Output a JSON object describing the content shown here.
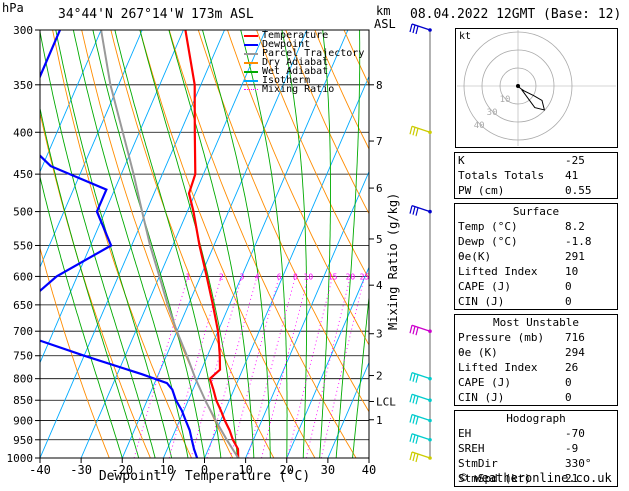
{
  "header": {
    "hpa_label": "hPa",
    "location": "34°44'N  267°14'W  173m  ASL",
    "km_label": "km",
    "asl_label": "ASL",
    "datetime": "08.04.2022  12GMT  (Base: 12)"
  },
  "chart_data": {
    "type": "line",
    "title": "",
    "xlabel": "Dewpoint / Temperature (°C)",
    "ylabel": "",
    "right_axis_label": "Mixing Ratio (g/kg)",
    "xlim": [
      -40,
      40
    ],
    "ylim_hpa": [
      1000,
      300
    ],
    "x_ticks": [
      "-40",
      "-30",
      "-20",
      "-10",
      "0",
      "10",
      "20",
      "30",
      "40"
    ],
    "pressure_ticks": [
      "300",
      "350",
      "400",
      "450",
      "500",
      "550",
      "600",
      "650",
      "700",
      "750",
      "800",
      "850",
      "900",
      "950",
      "1000"
    ],
    "km_ticks": [
      {
        "label": "8",
        "p": 350
      },
      {
        "label": "7",
        "p": 410
      },
      {
        "label": "6",
        "p": 468
      },
      {
        "label": "5",
        "p": 540
      },
      {
        "label": "4",
        "p": 615
      },
      {
        "label": "3",
        "p": 705
      },
      {
        "label": "2",
        "p": 793
      },
      {
        "label": "LCL",
        "p": 853
      },
      {
        "label": "1",
        "p": 898
      }
    ],
    "mixing_ratio_labels": [
      "1",
      "2",
      "3",
      "4",
      "6",
      "8",
      "10",
      "15",
      "20",
      "25"
    ],
    "legend": {
      "placement": "top-right",
      "entries": [
        {
          "name": "Temperature",
          "color": "#ff0000",
          "style": "solid"
        },
        {
          "name": "Dewpoint",
          "color": "#0000ff",
          "style": "solid"
        },
        {
          "name": "Parcel Trajectory",
          "color": "#999999",
          "style": "solid"
        },
        {
          "name": "Dry Adiabat",
          "color": "#ff8c00",
          "style": "solid"
        },
        {
          "name": "Wet Adiabat",
          "color": "#00aa00",
          "style": "solid"
        },
        {
          "name": "Isotherm",
          "color": "#00aaff",
          "style": "solid"
        },
        {
          "name": "Mixing Ratio",
          "color": "#ff00ff",
          "style": "dotted"
        }
      ]
    },
    "series": [
      {
        "name": "Temperature",
        "p": [
          1000,
          975,
          950,
          925,
          900,
          875,
          850,
          825,
          800,
          780,
          750,
          700,
          650,
          600,
          550,
          500,
          475,
          450,
          400,
          350,
          300
        ],
        "t": [
          8.2,
          7.2,
          5.0,
          3.2,
          1.0,
          -1.0,
          -3.2,
          -5.0,
          -7.0,
          -5.5,
          -7.0,
          -10.0,
          -14.0,
          -18.5,
          -23.5,
          -28.5,
          -31.5,
          -32.0,
          -36.5,
          -41.5,
          -49.5
        ]
      },
      {
        "name": "Dewpoint",
        "p": [
          1000,
          975,
          950,
          925,
          900,
          875,
          850,
          825,
          810,
          790,
          750,
          700,
          650,
          600,
          550,
          500,
          470,
          440,
          400,
          350,
          300
        ],
        "t": [
          -1.8,
          -3.5,
          -5.0,
          -6.5,
          -8.5,
          -10.5,
          -13.0,
          -15.0,
          -17.0,
          -24.0,
          -40.0,
          -60.0,
          -60.0,
          -55.0,
          -45.0,
          -52.0,
          -52.0,
          -68.0,
          -80.0,
          -80.0,
          -80.0
        ]
      },
      {
        "name": "Parcel Trajectory",
        "p": [
          1000,
          950,
          900,
          853,
          800,
          750,
          700,
          650,
          600,
          550,
          500,
          450,
          400,
          350,
          300
        ],
        "t": [
          8.2,
          3.5,
          -1.2,
          -5.6,
          -10.5,
          -15.0,
          -20.0,
          -25.0,
          -30.0,
          -35.5,
          -41.0,
          -47.0,
          -54.0,
          -62.0,
          -70.0
        ]
      }
    ],
    "wind_barbs": [
      {
        "p": 1000,
        "color": "#cccc00"
      },
      {
        "p": 950,
        "color": "#00cccc"
      },
      {
        "p": 900,
        "color": "#00cccc"
      },
      {
        "p": 850,
        "color": "#00cccc"
      },
      {
        "p": 800,
        "color": "#00cccc"
      },
      {
        "p": 700,
        "color": "#cc00cc"
      },
      {
        "p": 500,
        "color": "#0000cc"
      },
      {
        "p": 400,
        "color": "#cccc00"
      },
      {
        "p": 300,
        "color": "#0000cc"
      }
    ],
    "hodograph": {
      "unit_label": "kt",
      "ring_labels": [
        "10",
        "30",
        "40"
      ],
      "u": [
        0,
        2,
        5,
        13,
        20,
        22,
        14,
        3
      ],
      "v": [
        0,
        -2,
        -4,
        -8,
        -12,
        -20,
        -18,
        -3
      ]
    }
  },
  "indices": {
    "top": [
      {
        "label": "K",
        "value": "-25"
      },
      {
        "label": "Totals Totals",
        "value": "41"
      },
      {
        "label": "PW (cm)",
        "value": "0.55"
      }
    ],
    "surface": {
      "title": "Surface",
      "rows": [
        {
          "label": "Temp (°C)",
          "value": "8.2"
        },
        {
          "label": "Dewp (°C)",
          "value": "-1.8"
        },
        {
          "label": "θe(K)",
          "value": "291"
        },
        {
          "label": "Lifted Index",
          "value": "10"
        },
        {
          "label": "CAPE (J)",
          "value": "0"
        },
        {
          "label": "CIN (J)",
          "value": "0"
        }
      ]
    },
    "unstable": {
      "title": "Most Unstable",
      "rows": [
        {
          "label": "Pressure (mb)",
          "value": "716"
        },
        {
          "label": "θe (K)",
          "value": "294"
        },
        {
          "label": "Lifted Index",
          "value": "26"
        },
        {
          "label": "CAPE (J)",
          "value": "0"
        },
        {
          "label": "CIN (J)",
          "value": "0"
        }
      ]
    },
    "hodograph": {
      "title": "Hodograph",
      "rows": [
        {
          "label": "EH",
          "value": "-70"
        },
        {
          "label": "SREH",
          "value": "-9"
        },
        {
          "label": "StmDir",
          "value": "330°"
        },
        {
          "label": "StmSpd (kt)",
          "value": "21"
        }
      ]
    }
  },
  "footer": {
    "copyright": "© weatheronline.co.uk"
  },
  "colors": {
    "temperature": "#ff0000",
    "dewpoint": "#0000ff",
    "parcel": "#999999",
    "dry_adiabat": "#ff8c00",
    "wet_adiabat": "#00aa00",
    "isotherm": "#00aaff",
    "mixing": "#ff00ff"
  }
}
